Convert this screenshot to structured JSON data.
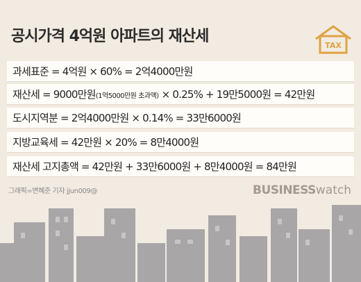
{
  "header": {
    "title": "공시가격 4억원 아파트의 재산세"
  },
  "icon_label": "TAX",
  "rows": [
    "과세표준 = 4억원 × 60% = 2억4000만원",
    "도시지역분 = 2억4000만원 × 0.14% = 33만6000원",
    "지방교육세 = 42만원 × 20% = 8만4000원",
    "재산세 고지총액 = 42만원 + 33만6000원 + 8만4000원 = 84만원"
  ],
  "row2": [
    "재산세 = 9000만원",
    "(1억5000만원 초과액)",
    " × 0.25% + 19만5000원 = 42만원"
  ],
  "footer": {
    "credit": "그래픽=변혜준 기자 jjun009@",
    "brand_bold": "BUSINESS",
    "brand_light": "watch"
  }
}
